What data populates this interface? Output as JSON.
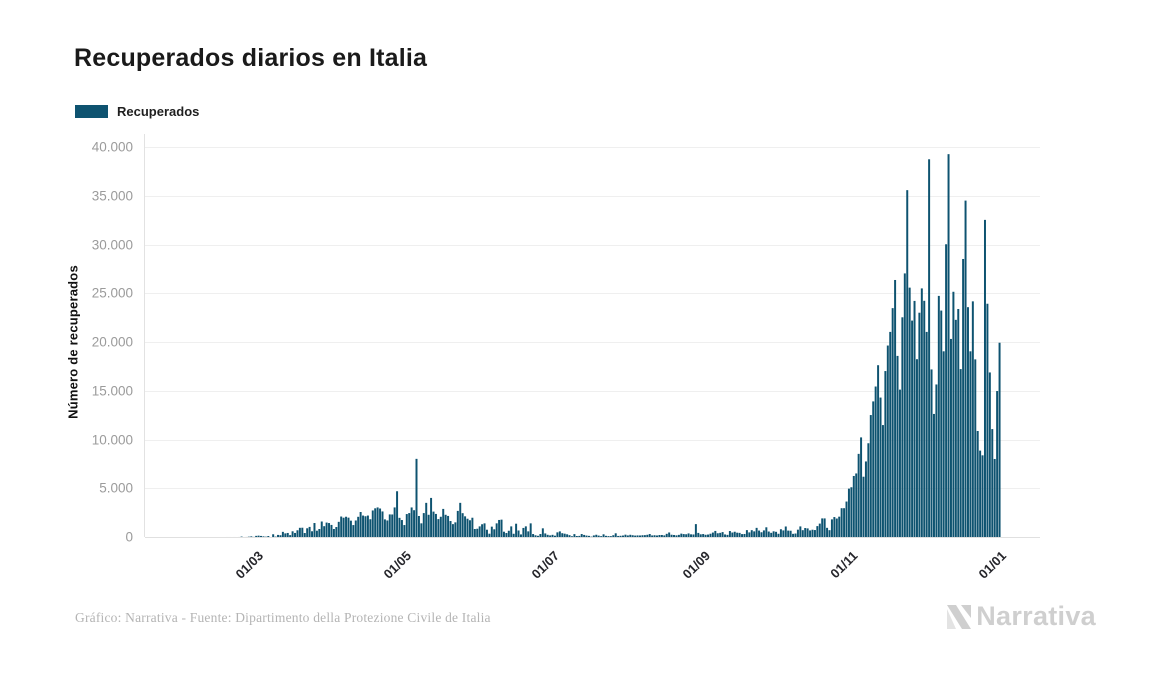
{
  "header": {
    "title": "Recuperados diarios en Italia"
  },
  "legend": {
    "items": [
      {
        "label": "Recuperados",
        "color": "#0e5370"
      }
    ]
  },
  "chart_data": {
    "type": "bar",
    "title": "Recuperados diarios en Italia",
    "xlabel": "",
    "ylabel": "Número de recuperados",
    "ylim": [
      0,
      40000
    ],
    "grid": "horizontal",
    "legend_position": "top-left",
    "start_date": "2020-01-31",
    "end_date": "2021-01-04",
    "y_ticks": [
      {
        "value": 0,
        "label": "0"
      },
      {
        "value": 5000,
        "label": "5.000"
      },
      {
        "value": 10000,
        "label": "10.000"
      },
      {
        "value": 15000,
        "label": "15.000"
      },
      {
        "value": 20000,
        "label": "20.000"
      },
      {
        "value": 25000,
        "label": "25.000"
      },
      {
        "value": 30000,
        "label": "30.000"
      },
      {
        "value": 35000,
        "label": "35.000"
      },
      {
        "value": 40000,
        "label": "40.000"
      }
    ],
    "x_ticks": [
      {
        "label": "01/03",
        "day_index": 30
      },
      {
        "label": "01/05",
        "day_index": 91
      },
      {
        "label": "01/07",
        "day_index": 152
      },
      {
        "label": "01/09",
        "day_index": 214
      },
      {
        "label": "01/11",
        "day_index": 275
      },
      {
        "label": "01/01",
        "day_index": 336
      }
    ],
    "series": [
      {
        "name": "Recuperados",
        "color": "#0e5370",
        "values": [
          0,
          0,
          0,
          0,
          0,
          0,
          0,
          0,
          0,
          0,
          0,
          0,
          0,
          0,
          0,
          0,
          0,
          0,
          0,
          0,
          0,
          1,
          1,
          0,
          1,
          0,
          2,
          42,
          1,
          4,
          33,
          66,
          11,
          116,
          138,
          109,
          66,
          33,
          102,
          0,
          280,
          41,
          213,
          181,
          527,
          369,
          414,
          192,
          585,
          415,
          689,
          943,
          952,
          408,
          894,
          1036,
          589,
          1434,
          646,
          819,
          1590,
          1109,
          1480,
          1431,
          1238,
          819,
          1022,
          1555,
          2099,
          1979,
          2079,
          1985,
          1677,
          1224,
          1695,
          2072,
          2563,
          2200,
          2128,
          2200,
          1822,
          2723,
          2943,
          3033,
          2922,
          2622,
          1808,
          1696,
          2317,
          2311,
          3033,
          4693,
          1965,
          1740,
          1225,
          2352,
          2452,
          3031,
          2747,
          8014,
          2155,
          1401,
          2452,
          3502,
          2278,
          4008,
          2605,
          2366,
          1836,
          2075,
          2881,
          2278,
          2160,
          1639,
          1320,
          1502,
          2677,
          3503,
          2443,
          2120,
          1874,
          1717,
          1976,
          820,
          846,
          1089,
          1306,
          1399,
          747,
          338,
          1062,
          789,
          1399,
          1747,
          1780,
          544,
          408,
          640,
          1089,
          331,
          1363,
          667,
          264,
          929,
          1092,
          577,
          1399,
          305,
          176,
          123,
          305,
          890,
          366,
          225,
          164,
          223,
          133,
          477,
          574,
          390,
          338,
          276,
          188,
          77,
          295,
          102,
          114,
          305,
          213,
          147,
          117,
          40,
          161,
          230,
          143,
          87,
          275,
          120,
          91,
          88,
          181,
          379,
          109,
          125,
          150,
          238,
          159,
          227,
          181,
          147,
          163,
          156,
          182,
          191,
          226,
          305,
          159,
          182,
          155,
          204,
          206,
          164,
          325,
          464,
          232,
          207,
          167,
          219,
          346,
          298,
          281,
          366,
          273,
          261,
          1322,
          420,
          276,
          304,
          229,
          251,
          334,
          455,
          622,
          383,
          425,
          504,
          263,
          219,
          611,
          459,
          539,
          443,
          424,
          297,
          311,
          706,
          471,
          699,
          578,
          937,
          661,
          487,
          678,
          995,
          561,
          428,
          585,
          533,
          331,
          796,
          676,
          1078,
          655,
          645,
          324,
          356,
          752,
          1086,
          698,
          919,
          881,
          674,
          747,
          713,
          1117,
          1374,
          1908,
          1907,
          939,
          700,
          1808,
          2046,
          1894,
          2086,
          2954,
          2954,
          3637,
          4961,
          5103,
          6258,
          6518,
          8526,
          10215,
          6183,
          7749,
          9615,
          12508,
          13908,
          15434,
          17620,
          14301,
          11480,
          17020,
          19638,
          21035,
          23474,
          26361,
          18574,
          15115,
          22533,
          27035,
          35574,
          25576,
          22196,
          24214,
          18236,
          23004,
          25497,
          24226,
          21035,
          38740,
          17186,
          12622,
          15645,
          24728,
          23225,
          19045,
          30025,
          39266,
          20315,
          25152,
          22272,
          23384,
          17220,
          28514,
          34503,
          23571,
          19045,
          24169,
          18218,
          10872,
          8861,
          8377,
          32525,
          23923,
          16877,
          11068,
          8002,
          14970,
          19926
        ]
      }
    ]
  },
  "footer": {
    "credit": "Gráfico: Narrativa - Fuente: Dipartimento della Protezione Civile de Italia",
    "logo_text": "Narrativa"
  },
  "colors": {
    "background": "#ffffff",
    "bar": "#0e5370",
    "title": "#1a1a1a",
    "y_tick_label": "#9b9b9b",
    "x_tick_label": "#26262b",
    "grid": "#efefef",
    "axis_line": "#e2e2e2",
    "credit": "#b4b4b4",
    "logo": "#cfcfcf"
  }
}
